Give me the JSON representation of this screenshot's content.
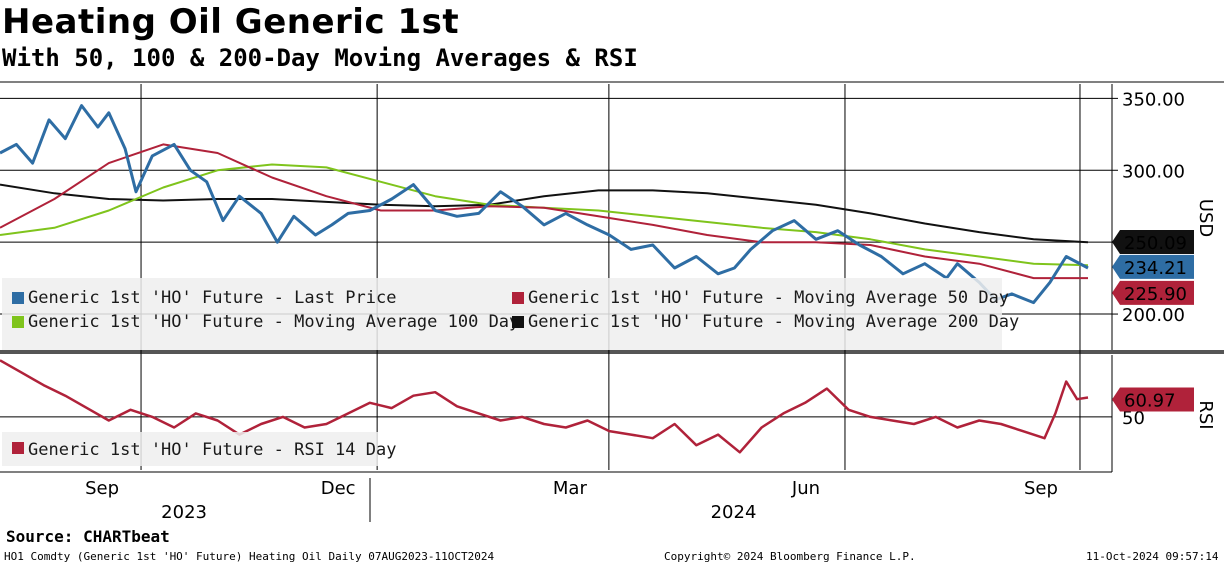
{
  "title": "Heating Oil Generic 1st",
  "subtitle": "With 50, 100 & 200-Day Moving Averages & RSI",
  "source": "Source: CHARTbeat",
  "footer": {
    "left": "HO1 Comdty (Generic 1st 'HO' Future) Heating Oil  Daily 07AUG2023-11OCT2024",
    "center": "Copyright© 2024 Bloomberg Finance L.P.",
    "right": "11-Oct-2024 09:57:14"
  },
  "chart_data": [
    {
      "type": "line",
      "title": "Price with Moving Averages",
      "ylabel": "USD",
      "ylim": [
        175,
        360
      ],
      "yticks": [
        200,
        250,
        300,
        350
      ],
      "ytick_labels": [
        "200.00",
        "250.00",
        "300.00",
        "350.00"
      ],
      "series": [
        {
          "name": "Generic 1st 'HO' Future - Last Price",
          "color": "#2e6da4",
          "x": [
            0,
            0.015,
            0.03,
            0.045,
            0.06,
            0.075,
            0.09,
            0.1,
            0.115,
            0.125,
            0.14,
            0.16,
            0.175,
            0.19,
            0.205,
            0.22,
            0.24,
            0.255,
            0.27,
            0.29,
            0.305,
            0.32,
            0.34,
            0.36,
            0.38,
            0.4,
            0.42,
            0.44,
            0.46,
            0.48,
            0.5,
            0.52,
            0.54,
            0.56,
            0.58,
            0.6,
            0.62,
            0.64,
            0.66,
            0.675,
            0.69,
            0.71,
            0.73,
            0.75,
            0.77,
            0.79,
            0.81,
            0.83,
            0.85,
            0.87,
            0.88,
            0.9,
            0.915,
            0.93,
            0.95,
            0.965,
            0.98,
            1.0
          ],
          "values": [
            312,
            318,
            305,
            335,
            322,
            345,
            330,
            340,
            315,
            285,
            310,
            318,
            300,
            292,
            265,
            282,
            270,
            250,
            268,
            255,
            262,
            270,
            272,
            280,
            290,
            272,
            268,
            270,
            285,
            275,
            262,
            270,
            262,
            255,
            245,
            248,
            232,
            240,
            228,
            232,
            245,
            258,
            265,
            252,
            258,
            248,
            240,
            228,
            235,
            225,
            235,
            222,
            210,
            214,
            208,
            222,
            240,
            232
          ],
          "last_value": 234.21,
          "label": "234.21"
        },
        {
          "name": "Generic 1st 'HO' Future - Moving Average 50 Day",
          "color": "#b0223a",
          "x": [
            0,
            0.05,
            0.1,
            0.15,
            0.2,
            0.25,
            0.3,
            0.35,
            0.4,
            0.45,
            0.5,
            0.55,
            0.6,
            0.65,
            0.7,
            0.75,
            0.8,
            0.85,
            0.9,
            0.95,
            1.0
          ],
          "values": [
            260,
            280,
            305,
            318,
            312,
            295,
            282,
            272,
            272,
            275,
            274,
            268,
            262,
            255,
            250,
            250,
            248,
            240,
            235,
            225,
            225
          ],
          "last_value": 225.9,
          "label": "225.90"
        },
        {
          "name": "Generic 1st 'HO' Future - Moving Average 100 Day",
          "color": "#7fc41c",
          "x": [
            0,
            0.05,
            0.1,
            0.15,
            0.2,
            0.25,
            0.3,
            0.35,
            0.4,
            0.45,
            0.5,
            0.55,
            0.6,
            0.65,
            0.7,
            0.75,
            0.8,
            0.85,
            0.9,
            0.95,
            1.0
          ],
          "values": [
            255,
            260,
            272,
            288,
            300,
            304,
            302,
            292,
            282,
            276,
            274,
            272,
            268,
            264,
            260,
            257,
            252,
            245,
            240,
            235,
            234
          ],
          "last_value": 234.5,
          "label": ""
        },
        {
          "name": "Generic 1st 'HO' Future - Moving Average 200 Day",
          "color": "#111111",
          "x": [
            0,
            0.05,
            0.1,
            0.15,
            0.2,
            0.25,
            0.3,
            0.35,
            0.4,
            0.45,
            0.5,
            0.55,
            0.6,
            0.65,
            0.7,
            0.75,
            0.8,
            0.85,
            0.9,
            0.95,
            1.0
          ],
          "values": [
            290,
            284,
            280,
            279,
            280,
            280,
            278,
            276,
            275,
            276,
            282,
            286,
            286,
            284,
            280,
            276,
            270,
            263,
            257,
            252,
            250
          ],
          "last_value": 250.09,
          "label": "250.09"
        }
      ],
      "legend": [
        "Generic 1st 'HO' Future - Last Price",
        "Generic 1st 'HO' Future - Moving Average 50 Day",
        "Generic 1st 'HO' Future - Moving Average 100 Day",
        "Generic 1st 'HO' Future - Moving Average 200 Day"
      ]
    },
    {
      "type": "line",
      "title": "RSI",
      "ylabel": "RSI",
      "ylim": [
        20,
        85
      ],
      "yticks": [
        50
      ],
      "ytick_labels": [
        "50"
      ],
      "series": [
        {
          "name": "Generic 1st 'HO' Future - RSI 14 Day",
          "color": "#b0223a",
          "x": [
            0,
            0.02,
            0.04,
            0.06,
            0.08,
            0.1,
            0.12,
            0.14,
            0.16,
            0.18,
            0.2,
            0.22,
            0.24,
            0.26,
            0.28,
            0.3,
            0.32,
            0.34,
            0.36,
            0.38,
            0.4,
            0.42,
            0.44,
            0.46,
            0.48,
            0.5,
            0.52,
            0.54,
            0.56,
            0.58,
            0.6,
            0.62,
            0.64,
            0.66,
            0.68,
            0.7,
            0.72,
            0.74,
            0.76,
            0.78,
            0.8,
            0.82,
            0.84,
            0.86,
            0.88,
            0.9,
            0.92,
            0.94,
            0.96,
            0.97,
            0.98,
            0.99,
            1.0
          ],
          "values": [
            82,
            75,
            68,
            62,
            55,
            48,
            54,
            50,
            44,
            52,
            48,
            40,
            46,
            50,
            44,
            46,
            52,
            58,
            55,
            62,
            64,
            56,
            52,
            48,
            50,
            46,
            44,
            48,
            42,
            40,
            38,
            46,
            34,
            40,
            30,
            44,
            52,
            58,
            66,
            54,
            50,
            48,
            46,
            50,
            44,
            48,
            46,
            42,
            38,
            52,
            70,
            60,
            61
          ],
          "last_value": 60.97,
          "label": "60.97"
        }
      ],
      "legend": [
        "Generic 1st 'HO' Future - RSI 14 Day"
      ]
    }
  ],
  "x_axis": {
    "month_labels": [
      "Sep",
      "Dec",
      "Mar",
      "Jun",
      "Sep"
    ],
    "month_positions": [
      0.08,
      0.297,
      0.51,
      0.727,
      0.943
    ],
    "year_labels": [
      "2023",
      "2024"
    ],
    "year_positions": [
      0.16,
      0.665
    ]
  },
  "ylabel_top": "USD",
  "ylabel_bottom": "RSI"
}
